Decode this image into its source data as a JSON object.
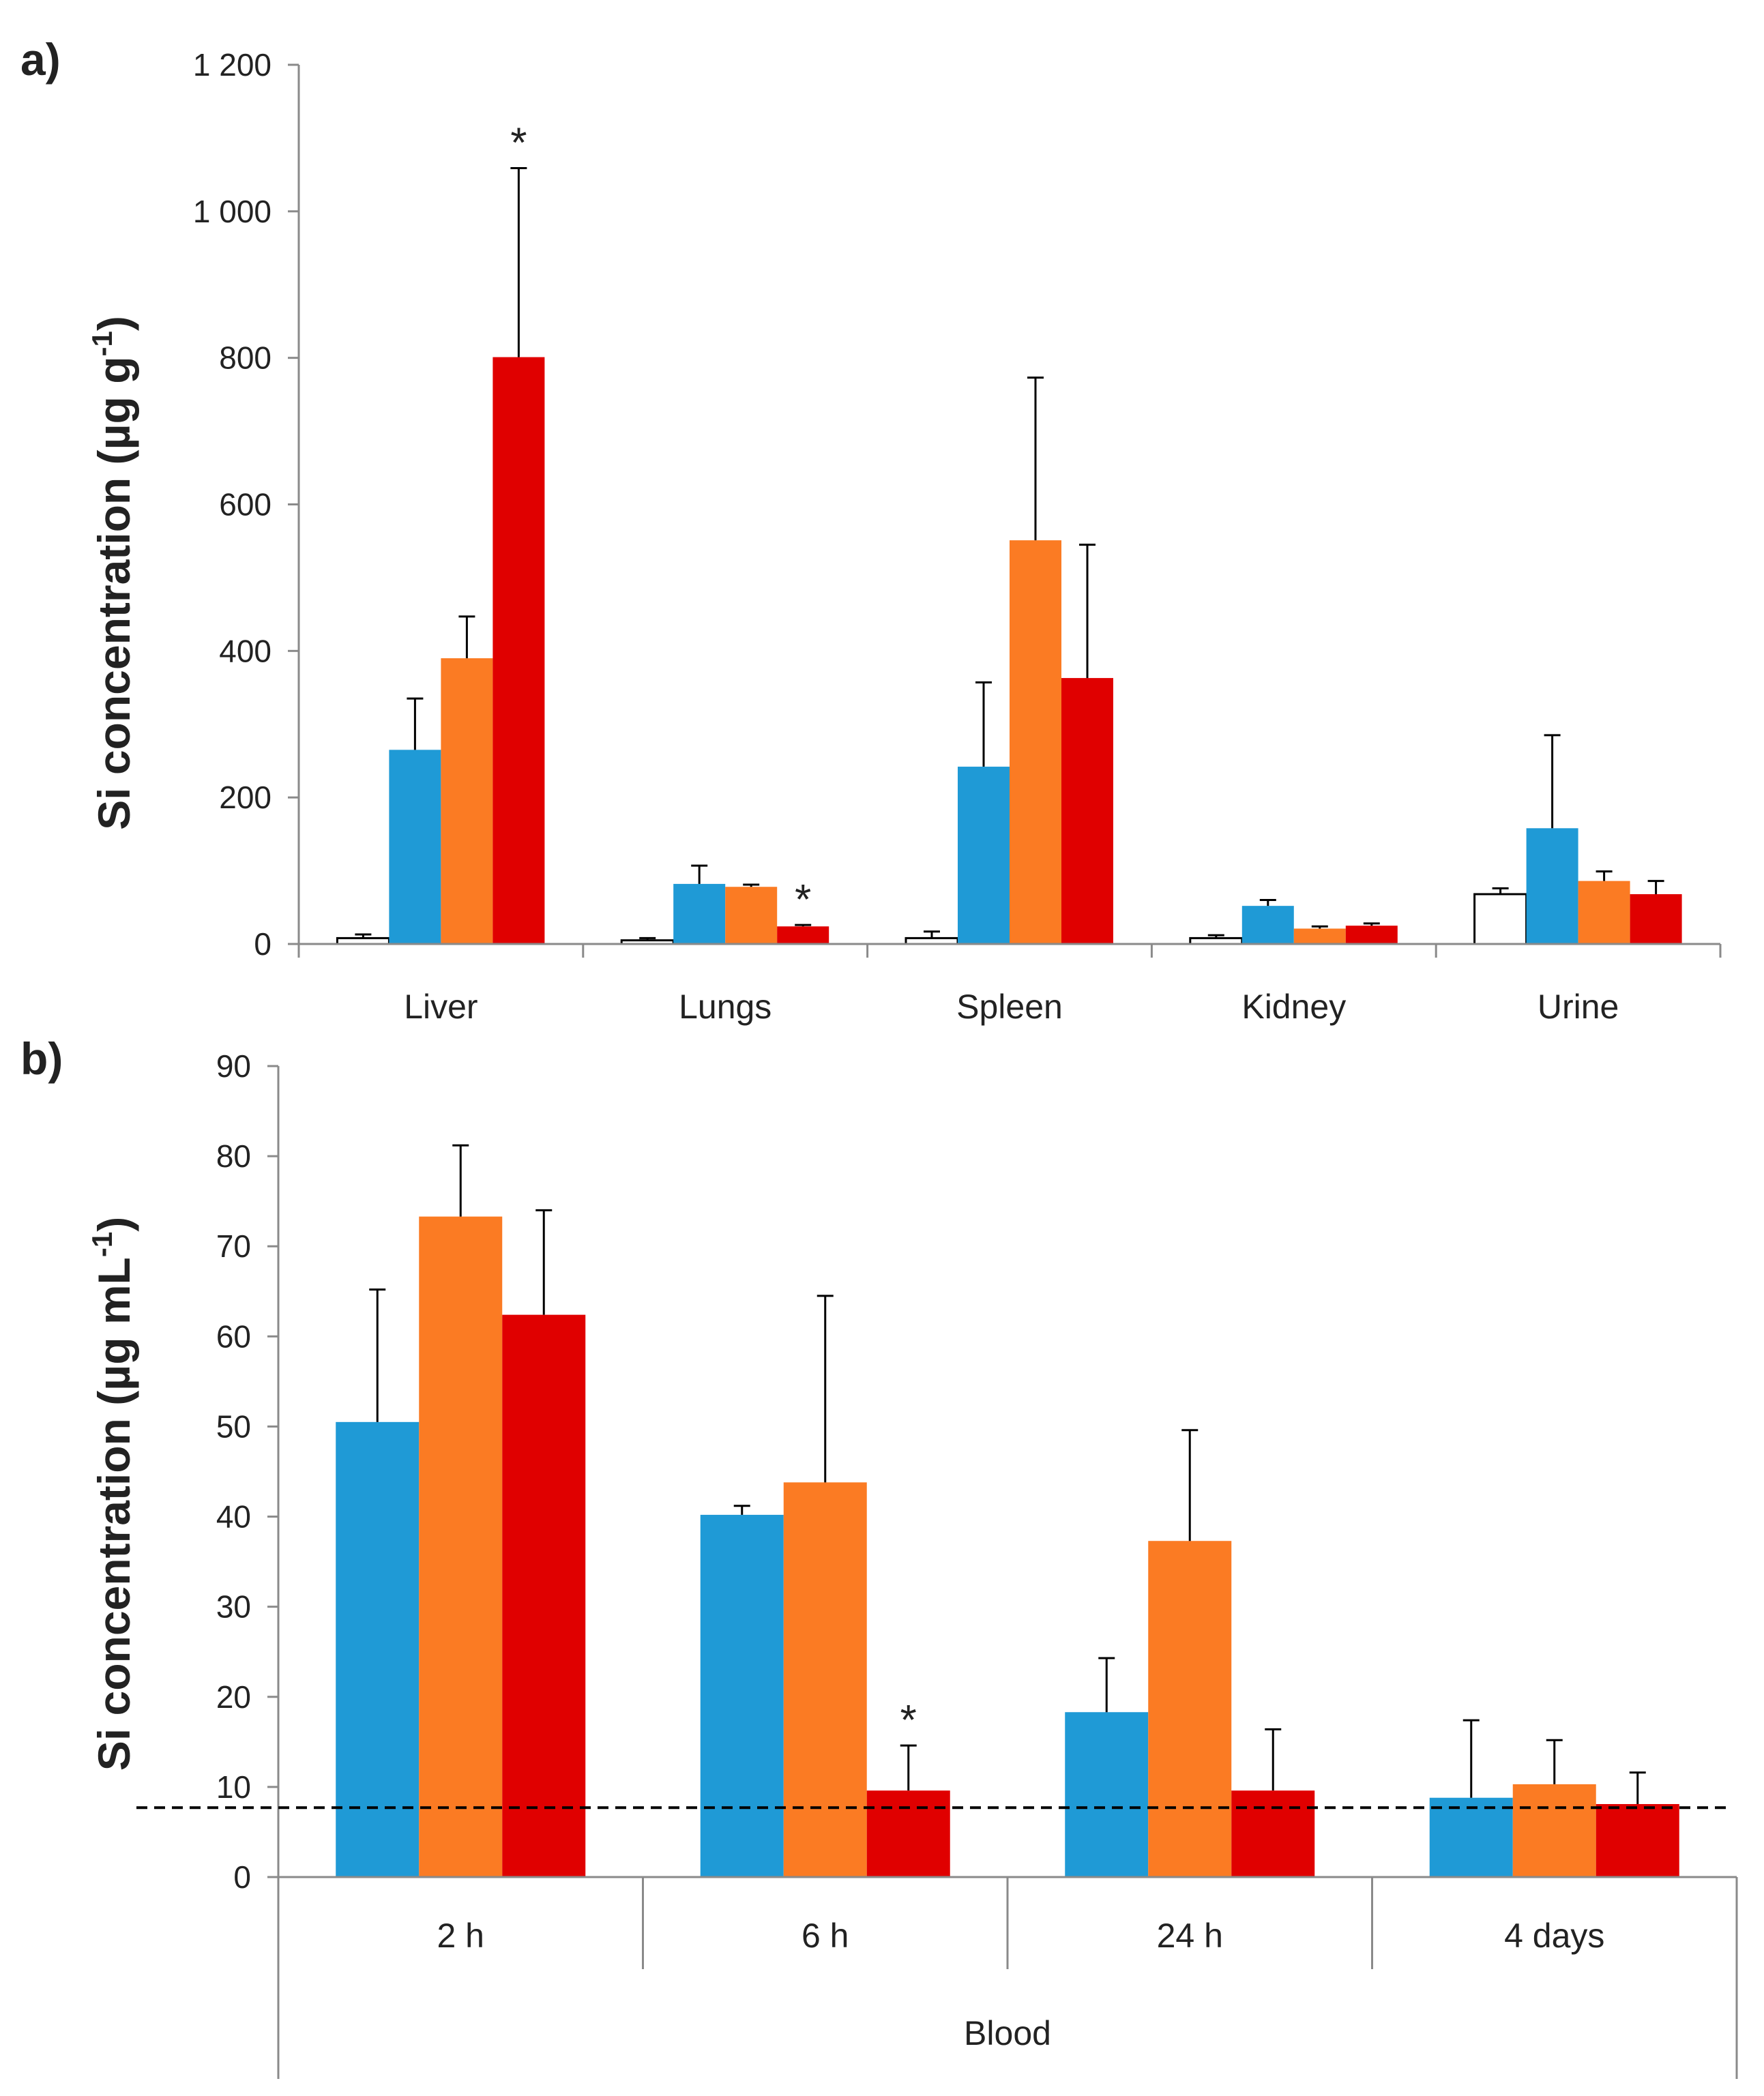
{
  "colors": {
    "control": "#ffffff",
    "series_blue": "#1f9ad6",
    "series_orange": "#fb7b23",
    "series_red": "#e00000",
    "axis": "#8a8a8a",
    "text": "#222222"
  },
  "chart_data": [
    {
      "panel_label": "a)",
      "type": "bar",
      "categories": [
        "Liver",
        "Lungs",
        "Spleen",
        "Kidney",
        "Urine"
      ],
      "series": [
        {
          "name": "control",
          "color": "#ffffff",
          "values": [
            8,
            5,
            8,
            8,
            68
          ],
          "errors": [
            5,
            3,
            9,
            4,
            8
          ]
        },
        {
          "name": "blue",
          "color": "#1f9ad6",
          "values": [
            265,
            82,
            242,
            52,
            158
          ],
          "errors": [
            70,
            25,
            115,
            8,
            127
          ]
        },
        {
          "name": "orange",
          "color": "#fb7b23",
          "values": [
            390,
            78,
            551,
            21,
            86
          ],
          "errors": [
            57,
            3,
            222,
            3,
            13
          ]
        },
        {
          "name": "red",
          "color": "#e00000",
          "values": [
            801,
            24,
            363,
            25,
            68
          ],
          "errors": [
            258,
            2,
            182,
            3,
            18
          ]
        }
      ],
      "yticks": [
        0,
        200,
        400,
        600,
        800,
        1000,
        1200
      ],
      "ytick_labels": [
        "0",
        "200",
        "400",
        "600",
        "800",
        "1 000",
        "1 200"
      ],
      "ylabel": {
        "text": "Si concentration (µg g",
        "sup": "-1",
        "close": ")"
      },
      "ylim": [
        0,
        1200
      ],
      "annotations": [
        {
          "category": "Liver",
          "series": "red",
          "text": "*"
        },
        {
          "category": "Lungs",
          "series": "red",
          "text": "*"
        }
      ]
    },
    {
      "panel_label": "b)",
      "type": "bar",
      "categories": [
        "2 h",
        "6 h",
        "24 h",
        "4 days"
      ],
      "group_label": "Blood",
      "series": [
        {
          "name": "blue",
          "color": "#1f9ad6",
          "values": [
            50.5,
            40.2,
            18.3,
            8.8
          ],
          "errors": [
            14.7,
            1.0,
            6.0,
            8.6
          ]
        },
        {
          "name": "orange",
          "color": "#fb7b23",
          "values": [
            73.3,
            43.8,
            37.3,
            10.3
          ],
          "errors": [
            7.9,
            20.7,
            12.3,
            4.9
          ]
        },
        {
          "name": "red",
          "color": "#e00000",
          "values": [
            62.4,
            9.6,
            9.6,
            8.1
          ],
          "errors": [
            11.6,
            5.0,
            6.8,
            3.5
          ]
        }
      ],
      "yticks": [
        0,
        10,
        20,
        30,
        40,
        50,
        60,
        70,
        80,
        90
      ],
      "ytick_labels": [
        "0",
        "10",
        "20",
        "30",
        "40",
        "50",
        "60",
        "70",
        "80",
        "90"
      ],
      "ylabel": {
        "text": "Si concentration (µg mL",
        "sup": "-1",
        "close": ")"
      },
      "ylim": [
        0,
        90
      ],
      "reference_line": {
        "value": 7.7,
        "style": "dashed"
      },
      "annotations": [
        {
          "category": "6 h",
          "series": "red",
          "text": "*"
        }
      ]
    }
  ]
}
